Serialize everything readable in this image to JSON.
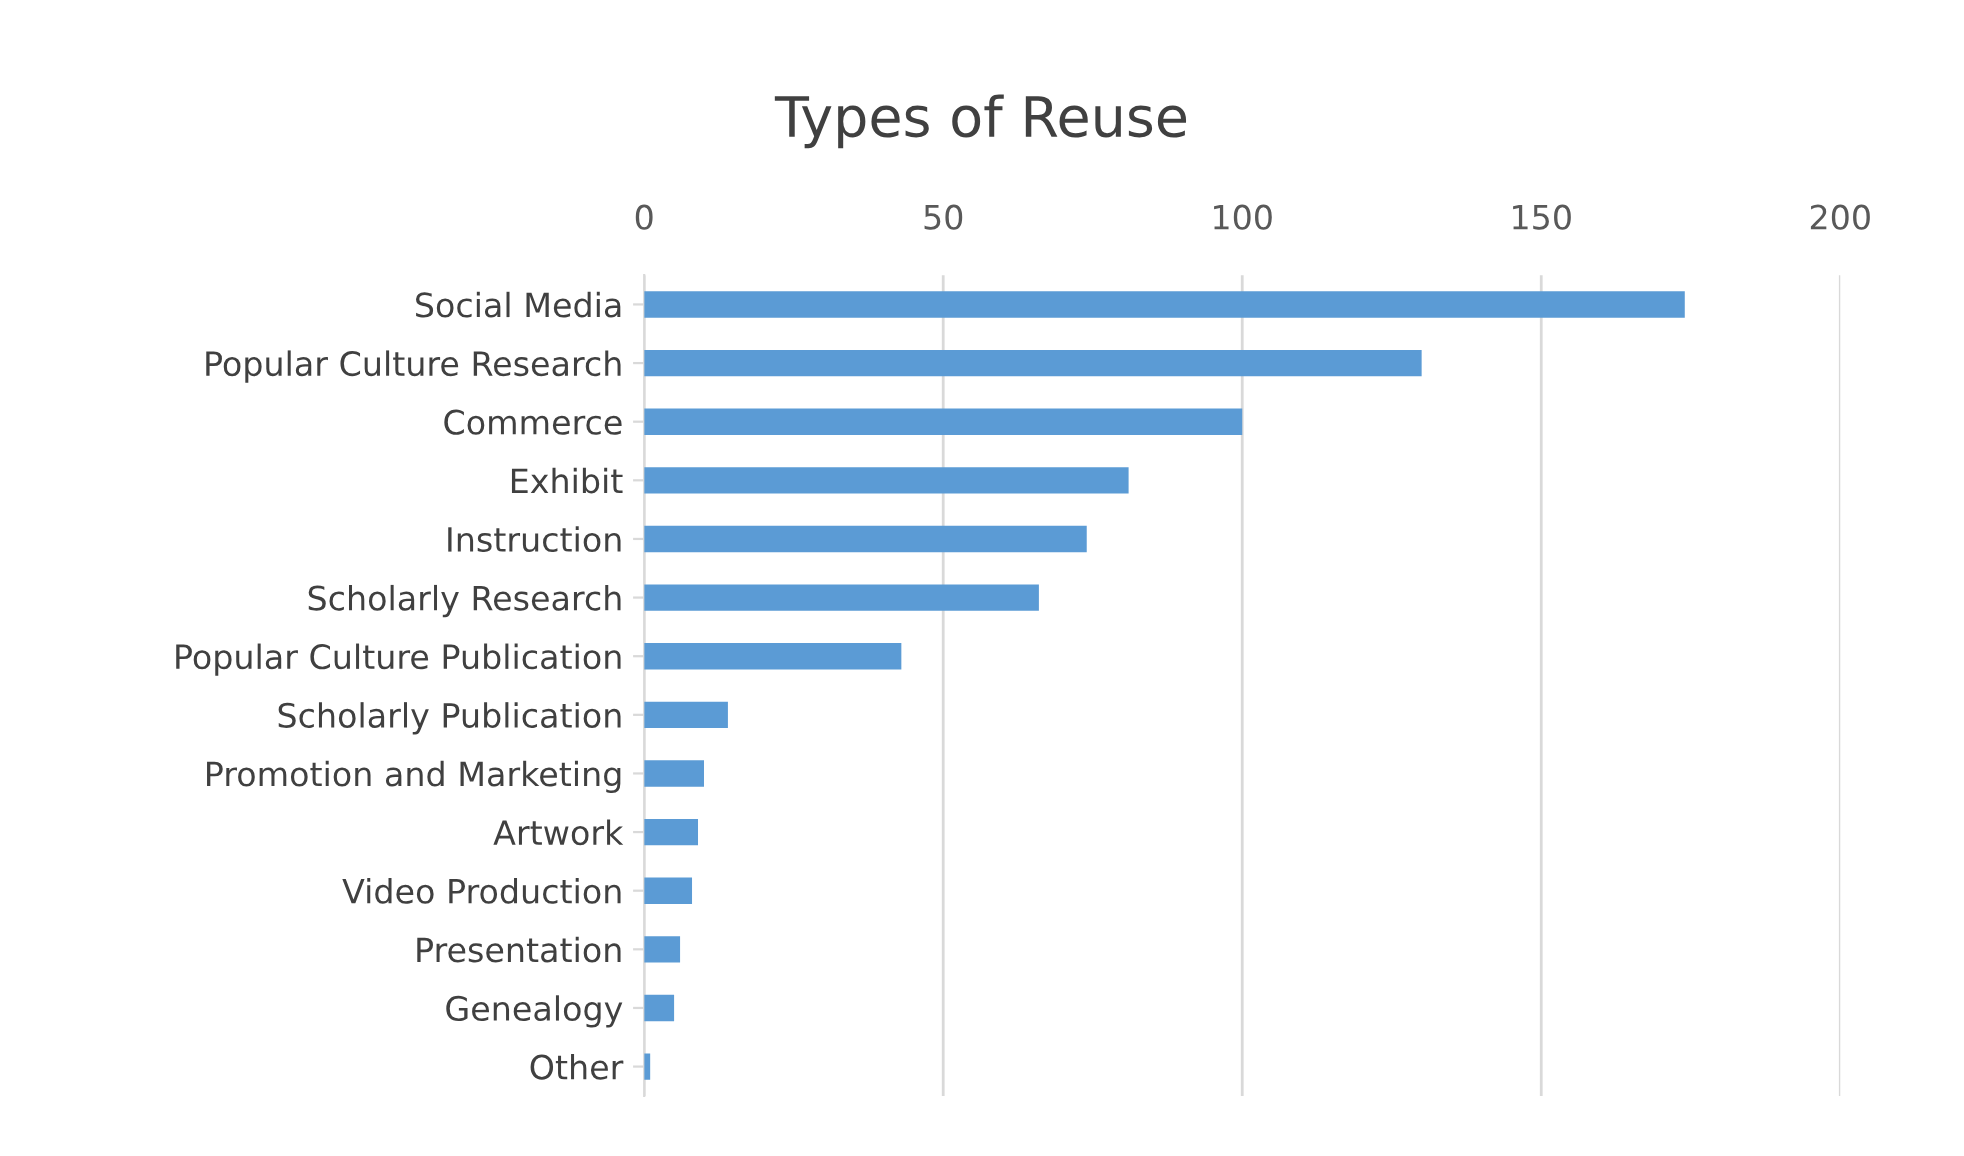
{
  "chart_data": {
    "type": "bar",
    "title": "Types of Reuse",
    "orientation": "horizontal",
    "categories": [
      "Social Media",
      "Popular Culture Research",
      "Commerce",
      "Exhibit",
      "Instruction",
      "Scholarly Research",
      "Popular Culture Publication",
      "Scholarly Publication",
      "Promotion and Marketing",
      "Artwork",
      "Video Production",
      "Presentation",
      "Genealogy",
      "Other"
    ],
    "values": [
      174,
      130,
      100,
      81,
      74,
      66,
      43,
      14,
      10,
      9,
      8,
      6,
      5,
      1
    ],
    "color": "#5b9bd5",
    "xlim": [
      0,
      200
    ],
    "xticks": [
      0,
      50,
      100,
      150,
      200
    ],
    "grid": "x"
  }
}
